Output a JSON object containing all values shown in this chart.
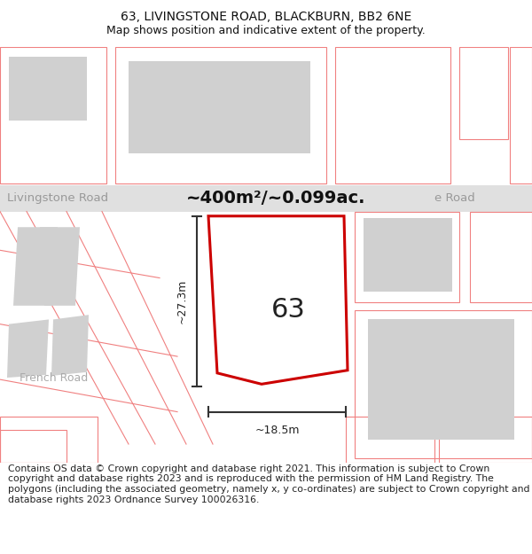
{
  "title": "63, LIVINGSTONE ROAD, BLACKBURN, BB2 6NE",
  "subtitle": "Map shows position and indicative extent of the property.",
  "area_text": "~400m²/~0.099ac.",
  "road1_label": "Livingstone Road",
  "road2_label": "e Road",
  "road3_label": "French Road",
  "plot_label": "63",
  "dim_vertical": "~27.3m",
  "dim_horizontal": "~18.5m",
  "footer": "Contains OS data © Crown copyright and database right 2021. This information is subject to Crown copyright and database rights 2023 and is reproduced with the permission of HM Land Registry. The polygons (including the associated geometry, namely x, y co-ordinates) are subject to Crown copyright and database rights 2023 Ordnance Survey 100026316.",
  "bg_color": "#ffffff",
  "road_band_color": "#e0e0e0",
  "plot_outline_color": "#cc0000",
  "pink_line_color": "#f08080",
  "building_fill": "#d0d0d0",
  "title_fontsize": 10,
  "subtitle_fontsize": 9,
  "footer_fontsize": 7.8,
  "road_label_color": "#999999",
  "area_text_color": "#111111"
}
